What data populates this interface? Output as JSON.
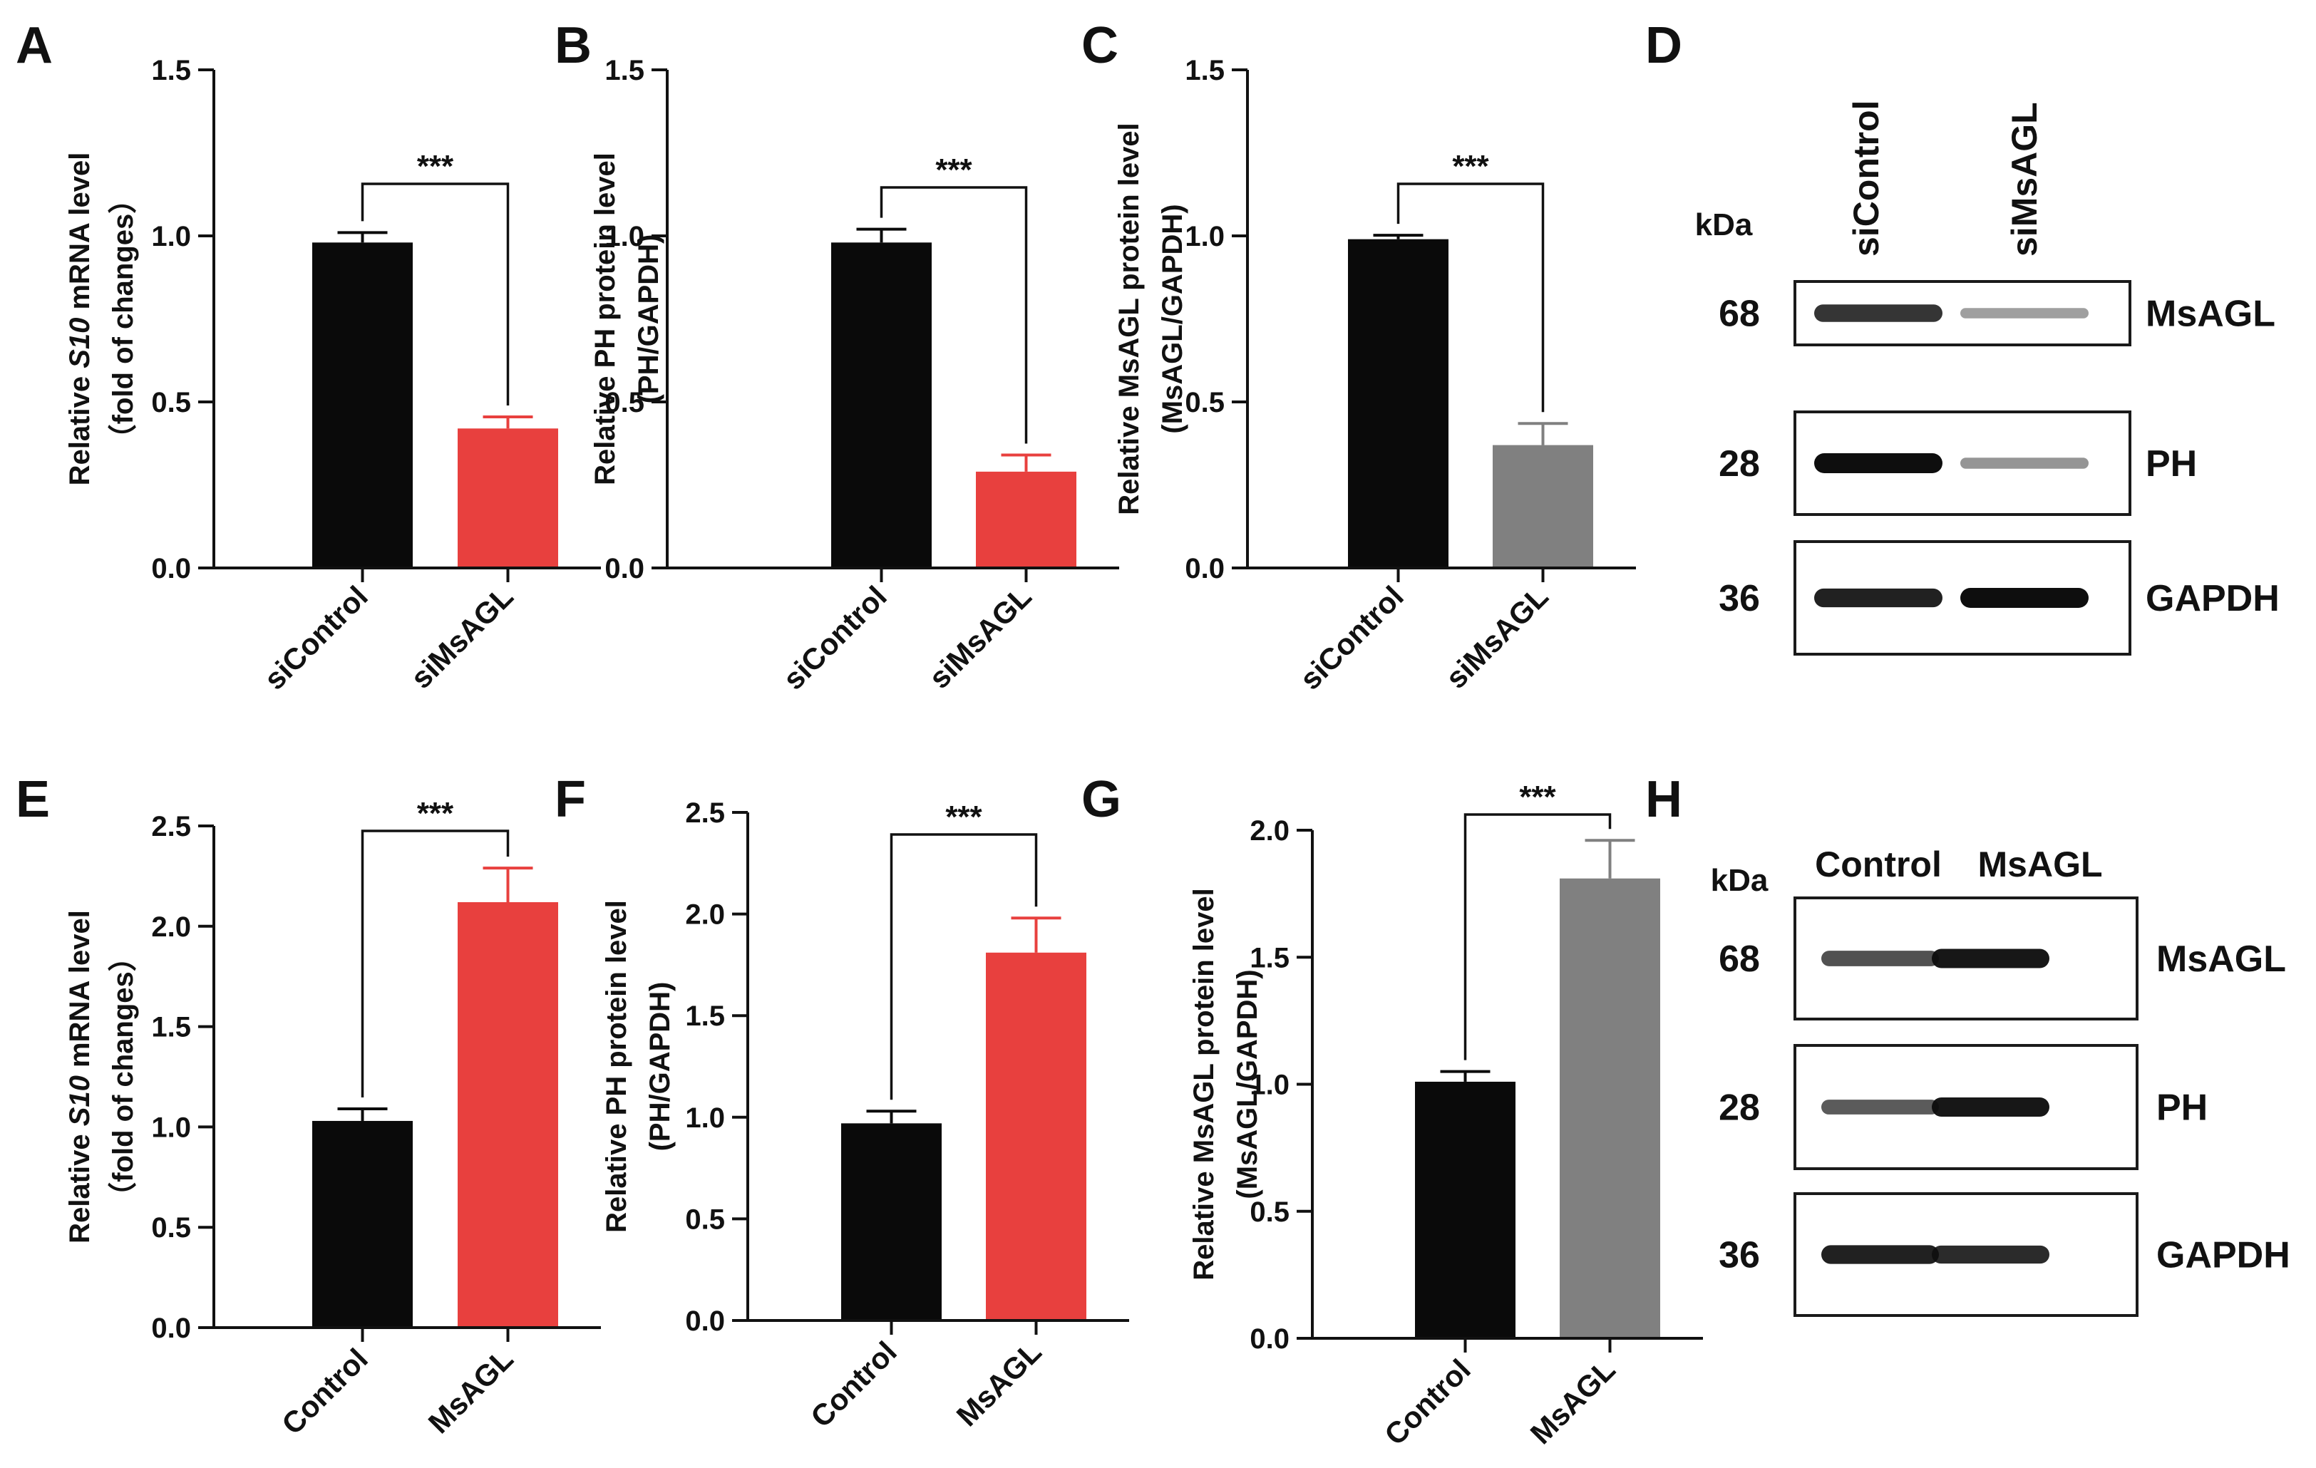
{
  "chart_data": [
    {
      "panel": "A",
      "type": "bar",
      "categories": [
        "siControl",
        "siMsAGL"
      ],
      "values": [
        0.98,
        0.42
      ],
      "errors": [
        0.03,
        0.035
      ],
      "colors": [
        "#0a0a0a",
        "#e8403e"
      ],
      "ylabel_pre": "Relative ",
      "ylabel_italic": "S10",
      "ylabel_post": " mRNA level",
      "ylabel_line2": "（fold of changes）",
      "ylim": [
        0,
        1.5
      ],
      "yticks": [
        "0.0",
        "0.5",
        "1.0",
        "1.5"
      ],
      "tick_step": 0.5,
      "significance": "***"
    },
    {
      "panel": "B",
      "type": "bar",
      "categories": [
        "siControl",
        "siMsAGL"
      ],
      "values": [
        0.98,
        0.29
      ],
      "errors": [
        0.04,
        0.05
      ],
      "colors": [
        "#0a0a0a",
        "#e8403e"
      ],
      "ylabel_pre": "Relative PH protein level",
      "ylabel_italic": "",
      "ylabel_post": "",
      "ylabel_line2": "(PH/GAPDH)",
      "ylim": [
        0,
        1.5
      ],
      "yticks": [
        "0.0",
        "0.5",
        "1.0",
        "1.5"
      ],
      "tick_step": 0.5,
      "significance": "***"
    },
    {
      "panel": "C",
      "type": "bar",
      "categories": [
        "siControl",
        "siMsAGL"
      ],
      "values": [
        0.99,
        0.37
      ],
      "errors": [
        0.012,
        0.065
      ],
      "colors": [
        "#0a0a0a",
        "#808080"
      ],
      "ylabel_pre": "Relative MsAGL protein level",
      "ylabel_italic": "",
      "ylabel_post": "",
      "ylabel_line2": "(MsAGL/GAPDH)",
      "ylim": [
        0,
        1.5
      ],
      "yticks": [
        "0.0",
        "0.5",
        "1.0",
        "1.5"
      ],
      "tick_step": 0.5,
      "significance": "***"
    },
    {
      "panel": "E",
      "type": "bar",
      "categories": [
        "Control",
        "MsAGL"
      ],
      "values": [
        1.03,
        2.12
      ],
      "errors": [
        0.06,
        0.17
      ],
      "colors": [
        "#0a0a0a",
        "#e8403e"
      ],
      "ylabel_pre": "Relative ",
      "ylabel_italic": "S10",
      "ylabel_post": " mRNA level",
      "ylabel_line2": "（fold of changes）",
      "ylim": [
        0,
        2.5
      ],
      "yticks": [
        "0.0",
        "0.5",
        "1.0",
        "1.5",
        "2.0",
        "2.5"
      ],
      "tick_step": 0.5,
      "significance": "***"
    },
    {
      "panel": "F",
      "type": "bar",
      "categories": [
        "Control",
        "MsAGL"
      ],
      "values": [
        0.97,
        1.81
      ],
      "errors": [
        0.06,
        0.17
      ],
      "colors": [
        "#0a0a0a",
        "#e8403e"
      ],
      "ylabel_pre": "Relative PH protein level",
      "ylabel_italic": "",
      "ylabel_post": "",
      "ylabel_line2": "(PH/GAPDH)",
      "ylim": [
        0,
        2.5
      ],
      "yticks": [
        "0.0",
        "0.5",
        "1.0",
        "1.5",
        "2.0",
        "2.5"
      ],
      "tick_step": 0.5,
      "significance": "***"
    },
    {
      "panel": "G",
      "type": "bar",
      "categories": [
        "Control",
        "MsAGL"
      ],
      "values": [
        1.01,
        1.81
      ],
      "errors": [
        0.04,
        0.15
      ],
      "colors": [
        "#0a0a0a",
        "#808080"
      ],
      "ylabel_pre": "Relative MsAGL protein level",
      "ylabel_italic": "",
      "ylabel_post": "",
      "ylabel_line2": "(MsAGL/GAPDH)",
      "ylim": [
        0,
        2.0
      ],
      "yticks": [
        "0.0",
        "0.5",
        "1.0",
        "1.5",
        "2.0"
      ],
      "tick_step": 0.5,
      "significance": "***"
    }
  ],
  "blots": [
    {
      "panel": "D",
      "unit_label": "kDa",
      "lane_labels": [
        "siControl",
        "siMsAGL"
      ],
      "rows": [
        {
          "kda": "68",
          "protein": "MsAGL",
          "intensities": [
            0.8,
            0.25
          ]
        },
        {
          "kda": "28",
          "protein": "PH",
          "intensities": [
            1.0,
            0.3
          ]
        },
        {
          "kda": "36",
          "protein": "GAPDH",
          "intensities": [
            0.9,
            1.0
          ]
        }
      ]
    },
    {
      "panel": "H",
      "unit_label": "kDa",
      "lane_labels": [
        "Control",
        "MsAGL"
      ],
      "rows": [
        {
          "kda": "68",
          "protein": "MsAGL",
          "intensities": [
            0.65,
            0.95
          ]
        },
        {
          "kda": "28",
          "protein": "PH",
          "intensities": [
            0.6,
            0.95
          ]
        },
        {
          "kda": "36",
          "protein": "GAPDH",
          "intensities": [
            0.9,
            0.85
          ]
        }
      ]
    }
  ]
}
